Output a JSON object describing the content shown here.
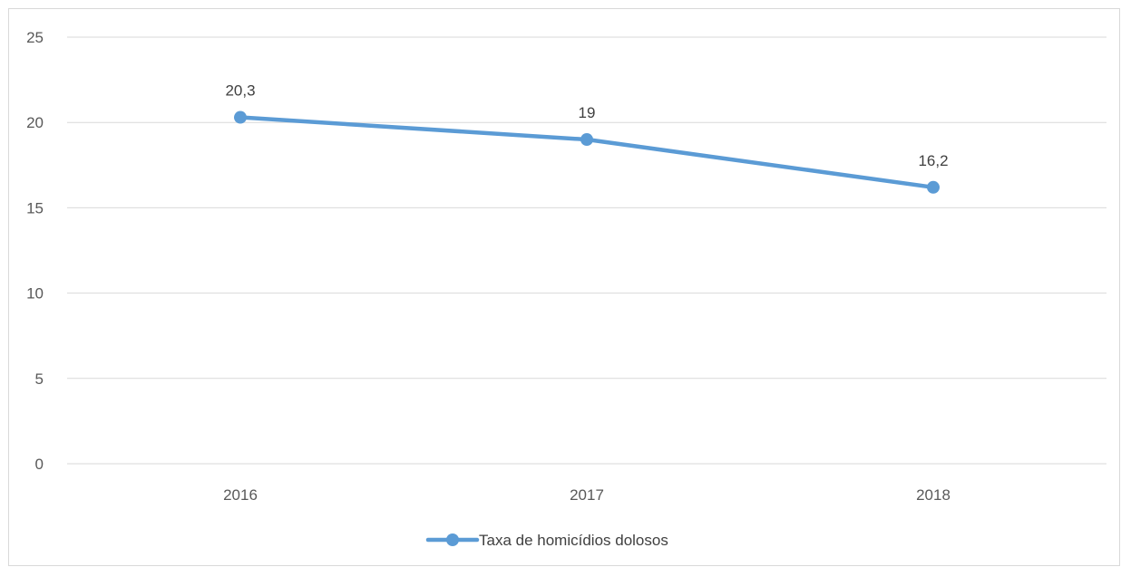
{
  "chart_data": {
    "type": "line",
    "categories": [
      "2016",
      "2017",
      "2018"
    ],
    "series": [
      {
        "name": "Taxa de homicídios dolosos",
        "values": [
          20.3,
          19,
          16.2
        ],
        "data_labels": [
          "20,3",
          "19",
          "16,2"
        ],
        "color": "#5b9bd5"
      }
    ],
    "ylim": [
      0,
      25
    ],
    "yticks": [
      0,
      5,
      10,
      15,
      20,
      25
    ],
    "grid": true,
    "legend_position": "bottom",
    "gridline_color": "#d9d9d9"
  }
}
